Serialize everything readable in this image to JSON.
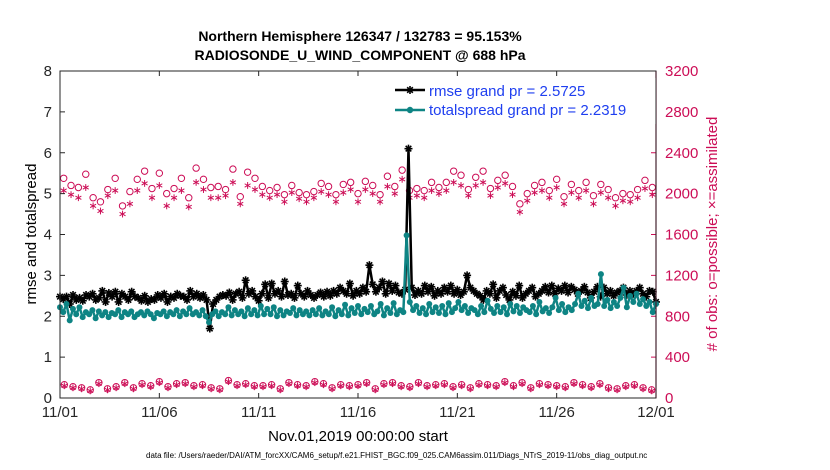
{
  "chart_data": {
    "type": "line",
    "title": "Northern Hemisphere 126347 / 132783 = 95.153%",
    "subtitle": "RADIOSONDE_U_WIND_COMPONENT @ 688 hPa",
    "xlabel": "Nov.01,2019 00:00:00 start",
    "ylabel": "rmse and totalspread",
    "y2label": "# of obs: o=possible; ×=assimilated",
    "footnote": "data file: /Users/raeder/DAI/ATM_forcXX/CAM6_setup/f.e21.FHIST_BGC.f09_025.CAM6assim.011/Diags_NTrS_2019-11/obs_diag_output.nc",
    "xlim": [
      0,
      30
    ],
    "ylim": [
      0,
      8
    ],
    "y2lim": [
      0,
      3200
    ],
    "xticks": [
      0,
      5,
      10,
      15,
      20,
      25,
      30
    ],
    "xticklabels": [
      "11/01",
      "11/06",
      "11/11",
      "11/16",
      "11/21",
      "11/26",
      "12/01"
    ],
    "yticks": [
      0,
      1,
      2,
      3,
      4,
      5,
      6,
      7,
      8
    ],
    "y2ticks": [
      0,
      400,
      800,
      1200,
      1600,
      2000,
      2400,
      2800,
      3200
    ],
    "colors": {
      "rmse": "#000000",
      "spread": "#0e8484",
      "obs": "#cc0d56",
      "legend_text": "#1f3ff0"
    },
    "series": [
      {
        "name": "rmse grand pr = 2.5725",
        "key": "rmse",
        "values": [
          2.48,
          2.42,
          2.48,
          2.3,
          2.52,
          2.4,
          2.45,
          2.38,
          2.52,
          2.48,
          2.55,
          2.4,
          2.45,
          2.62,
          2.35,
          2.57,
          2.48,
          2.6,
          2.35,
          2.55,
          2.48,
          2.4,
          2.6,
          2.48,
          2.45,
          2.38,
          2.5,
          2.35,
          2.42,
          2.4,
          2.52,
          2.45,
          2.55,
          2.35,
          2.48,
          2.45,
          2.55,
          2.5,
          2.48,
          2.4,
          2.62,
          2.48,
          2.55,
          2.45,
          2.52,
          2.4,
          1.7,
          2.3,
          2.4,
          2.48,
          2.52,
          2.5,
          2.58,
          2.4,
          2.55,
          2.6,
          2.45,
          2.88,
          2.55,
          2.62,
          2.48,
          2.38,
          2.55,
          2.78,
          2.45,
          2.8,
          2.55,
          2.62,
          2.48,
          2.85,
          2.52,
          2.55,
          2.45,
          2.75,
          2.55,
          2.48,
          2.62,
          2.52,
          2.45,
          2.52,
          2.58,
          2.48,
          2.6,
          2.5,
          2.62,
          2.55,
          2.7,
          2.62,
          2.55,
          2.8,
          2.5,
          2.62,
          2.55,
          2.7,
          2.6,
          3.25,
          2.78,
          2.6,
          2.7,
          2.85,
          2.55,
          2.8,
          2.62,
          2.75,
          2.58,
          2.55,
          2.65,
          6.1,
          2.7,
          2.52,
          2.62,
          2.55,
          2.75,
          2.6,
          2.72,
          2.5,
          2.62,
          2.55,
          2.7,
          2.6,
          2.75,
          2.55,
          2.65,
          2.52,
          2.6,
          3.0,
          2.7,
          2.62,
          2.55,
          2.5,
          2.4,
          2.62,
          2.55,
          2.78,
          2.45,
          2.62,
          2.7,
          2.52,
          2.4,
          2.6,
          2.5,
          2.75,
          2.45,
          2.55,
          2.62,
          2.7,
          2.48,
          2.55,
          2.62,
          2.72,
          2.58,
          2.75,
          2.55,
          2.68,
          2.62,
          2.75,
          2.58,
          2.72,
          2.65,
          2.55,
          2.62,
          2.72,
          2.58,
          2.45,
          2.6,
          2.72,
          2.48,
          2.7,
          2.55,
          2.62,
          2.5,
          2.58,
          2.62,
          2.7,
          2.52,
          2.62,
          2.55,
          2.62,
          2.7,
          2.55,
          2.48,
          2.62,
          2.6,
          2.35
        ]
      },
      {
        "name": "totalspread grand pr = 2.2319",
        "key": "spread",
        "values": [
          2.22,
          2.1,
          2.3,
          1.9,
          2.18,
          2.05,
          2.22,
          1.98,
          2.1,
          2.05,
          2.15,
          1.95,
          2.12,
          2.02,
          2.1,
          1.98,
          2.08,
          2.05,
          2.15,
          1.98,
          2.1,
          2.05,
          2.12,
          1.98,
          2.05,
          2.1,
          2.02,
          2.12,
          2.05,
          1.95,
          2.08,
          2.05,
          2.12,
          2.0,
          2.1,
          2.05,
          2.15,
          2.0,
          2.12,
          2.05,
          2.2,
          2.05,
          2.1,
          2.02,
          2.15,
          2.0,
          1.85,
          2.05,
          2.12,
          2.0,
          2.1,
          2.05,
          2.22,
          2.02,
          2.15,
          2.05,
          2.12,
          2.0,
          2.2,
          2.05,
          2.15,
          2.02,
          2.25,
          2.05,
          2.18,
          2.05,
          2.22,
          2.0,
          2.15,
          2.02,
          2.12,
          2.08,
          2.2,
          2.02,
          2.15,
          2.05,
          2.12,
          2.02,
          2.15,
          2.05,
          2.2,
          2.02,
          2.12,
          2.05,
          2.22,
          2.0,
          2.15,
          2.05,
          2.28,
          2.02,
          2.2,
          2.08,
          2.25,
          2.05,
          2.18,
          2.1,
          2.25,
          2.05,
          2.12,
          2.3,
          2.02,
          2.2,
          2.08,
          2.32,
          2.05,
          2.15,
          2.1,
          3.98,
          2.35,
          2.15,
          2.25,
          2.08,
          2.2,
          2.05,
          2.3,
          2.1,
          2.22,
          2.08,
          2.25,
          2.05,
          2.32,
          2.1,
          2.2,
          2.35,
          2.15,
          2.25,
          2.08,
          2.2,
          2.15,
          2.05,
          2.25,
          2.1,
          2.38,
          2.18,
          2.08,
          2.25,
          2.1,
          2.22,
          2.05,
          2.3,
          2.12,
          2.25,
          2.08,
          2.22,
          2.15,
          2.1,
          2.25,
          2.05,
          2.35,
          2.12,
          2.2,
          2.08,
          2.22,
          2.45,
          2.15,
          2.3,
          2.1,
          2.22,
          2.15,
          2.3,
          2.55,
          2.25,
          2.38,
          2.2,
          2.45,
          2.25,
          2.3,
          3.03,
          2.25,
          2.4,
          2.2,
          2.35,
          2.25,
          2.45,
          2.7,
          2.22,
          2.5,
          2.35,
          2.55,
          2.3,
          2.42,
          2.25,
          2.35,
          2.1,
          2.3
        ]
      }
    ],
    "obs_possible": [
      2150,
      2080,
      2060,
      2190,
      1960,
      1920,
      2040,
      2150,
      1880,
      2020,
      2140,
      2220,
      2050,
      2200,
      2000,
      2050,
      2150,
      1960,
      2250,
      2140,
      2060,
      2070,
      2040,
      2240,
      1970,
      2210,
      2150,
      2070,
      2030,
      2060,
      1990,
      2080,
      2010,
      1990,
      2020,
      2100,
      2070,
      1990,
      2090,
      2110,
      2000,
      2120,
      2080,
      1990,
      2170,
      2070,
      2230,
      2030,
      2050,
      2030,
      2110,
      2060,
      2110,
      2220,
      2180,
      2040,
      2160,
      2220,
      2050,
      2130,
      2180,
      2070,
      1900,
      2000,
      2080,
      2110,
      2030,
      2140,
      1970,
      2090,
      2030,
      2110,
      1980,
      2090,
      2040,
      1960,
      2000,
      1990,
      2040,
      2130,
      2060
    ],
    "obs_assimilated": [
      2030,
      1990,
      1960,
      2060,
      1880,
      1830,
      1980,
      2030,
      1800,
      1900,
      2030,
      2100,
      1960,
      2080,
      1880,
      1960,
      2030,
      1870,
      2110,
      2040,
      1960,
      1960,
      1980,
      2110,
      1900,
      2080,
      2040,
      1990,
      1960,
      1990,
      1920,
      2010,
      1950,
      1920,
      1960,
      2020,
      1990,
      1920,
      2010,
      2040,
      1920,
      2040,
      2000,
      1920,
      2070,
      2000,
      2140,
      1960,
      1980,
      1960,
      2030,
      2000,
      2030,
      2110,
      2080,
      1980,
      2080,
      2110,
      1980,
      2060,
      2100,
      1990,
      1820,
      1930,
      2010,
      2030,
      1960,
      2060,
      1900,
      2010,
      1960,
      2030,
      1900,
      2010,
      1960,
      1880,
      1930,
      1920,
      1960,
      2050,
      1990
    ],
    "obs_low_possible": [
      130,
      110,
      100,
      80,
      150,
      90,
      110,
      150,
      100,
      140,
      120,
      160,
      110,
      140,
      150,
      120,
      130,
      100,
      90,
      170,
      130,
      140,
      120,
      120,
      130,
      90,
      150,
      130,
      120,
      160,
      140,
      100,
      130,
      120,
      130,
      150,
      90,
      140,
      150,
      120,
      110,
      150,
      120,
      130,
      140,
      110,
      130,
      100,
      140,
      130,
      120,
      160,
      120,
      150,
      100,
      140,
      130,
      120,
      110,
      150,
      130,
      110,
      140,
      100,
      90,
      120,
      130,
      100,
      80
    ],
    "obs_low_assimilated": [
      120,
      100,
      90,
      70,
      140,
      80,
      100,
      140,
      90,
      130,
      110,
      150,
      100,
      130,
      140,
      110,
      120,
      90,
      80,
      160,
      120,
      130,
      110,
      110,
      120,
      80,
      140,
      120,
      110,
      150,
      130,
      90,
      120,
      110,
      120,
      140,
      80,
      130,
      140,
      110,
      100,
      140,
      110,
      120,
      130,
      100,
      120,
      90,
      130,
      120,
      110,
      150,
      110,
      140,
      90,
      130,
      120,
      110,
      100,
      140,
      120,
      100,
      130,
      90,
      80,
      110,
      120,
      90,
      70
    ]
  }
}
